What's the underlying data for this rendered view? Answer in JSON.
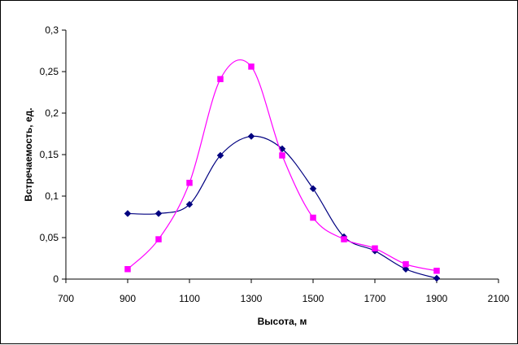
{
  "chart_data": {
    "type": "line",
    "title": "",
    "xlabel": "Высота, м",
    "ylabel": "Встречаемость, ед.",
    "xlim": [
      700,
      2100
    ],
    "ylim": [
      0,
      0.3
    ],
    "x_ticks": [
      700,
      900,
      1100,
      1300,
      1500,
      1700,
      1900,
      2100
    ],
    "x_tick_labels": [
      "700",
      "900",
      "1100",
      "1300",
      "1500",
      "1700",
      "1900",
      "2100"
    ],
    "y_ticks": [
      0,
      0.05,
      0.1,
      0.15,
      0.2,
      0.25,
      0.3
    ],
    "y_tick_labels": [
      "0",
      "0,05",
      "0,1",
      "0,15",
      "0,2",
      "0,25",
      "0,3"
    ],
    "grid": false,
    "legend": "none",
    "smooth": true,
    "series": [
      {
        "color": "#000080",
        "marker": "diamond",
        "x": [
          900,
          1000,
          1100,
          1200,
          1300,
          1400,
          1500,
          1600,
          1700,
          1800,
          1900
        ],
        "y": [
          0.079,
          0.079,
          0.09,
          0.149,
          0.172,
          0.157,
          0.109,
          0.051,
          0.034,
          0.012,
          0.001
        ]
      },
      {
        "color": "#FF00FF",
        "marker": "square",
        "x": [
          900,
          1000,
          1100,
          1200,
          1300,
          1400,
          1500,
          1600,
          1700,
          1800,
          1900
        ],
        "y": [
          0.012,
          0.048,
          0.116,
          0.241,
          0.256,
          0.149,
          0.074,
          0.048,
          0.037,
          0.018,
          0.01
        ]
      }
    ]
  }
}
